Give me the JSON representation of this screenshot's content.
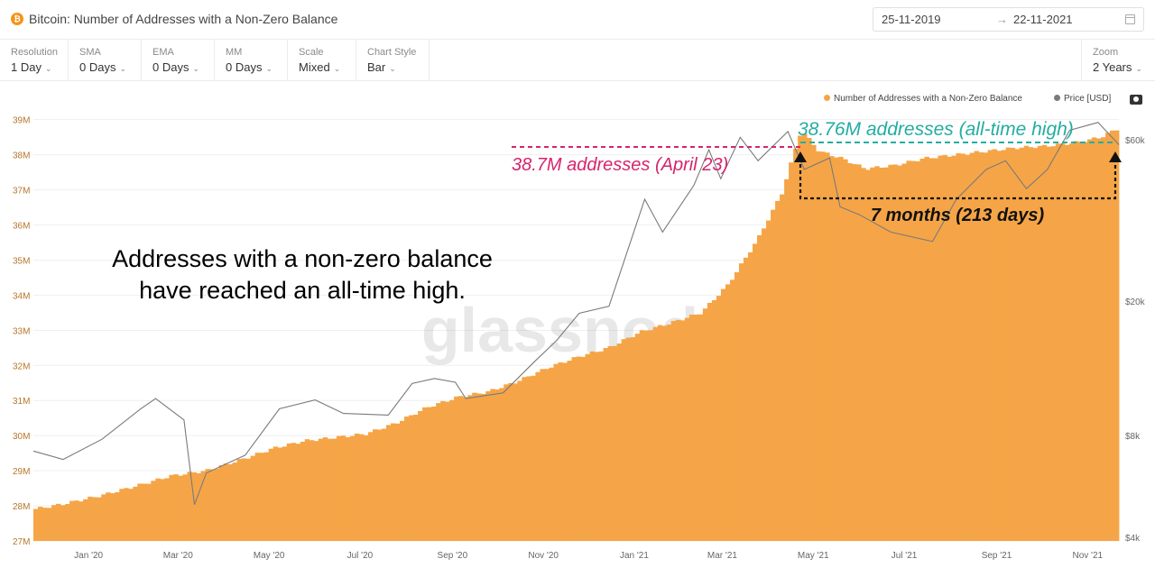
{
  "header": {
    "coin_symbol": "₿",
    "title": "Bitcoin: Number of Addresses with a Non-Zero Balance",
    "date_from": "25-11-2019",
    "date_arrow": "→",
    "date_to": "22-11-2021"
  },
  "toolbar": {
    "chevron": "⌄",
    "resolution": {
      "label": "Resolution",
      "value": "1 Day"
    },
    "sma": {
      "label": "SMA",
      "value": "0 Days"
    },
    "ema": {
      "label": "EMA",
      "value": "0 Days"
    },
    "mm": {
      "label": "MM",
      "value": "0 Days"
    },
    "scale": {
      "label": "Scale",
      "value": "Mixed"
    },
    "chart_style": {
      "label": "Chart Style",
      "value": "Bar"
    },
    "zoom": {
      "label": "Zoom",
      "value": "2 Years"
    }
  },
  "legend": {
    "addresses": "Number of Addresses with a Non-Zero Balance",
    "price": "Price [USD]"
  },
  "colors": {
    "bar": "#f5a547",
    "price_line": "#7a7a7a",
    "annotation_pink": "#d6246e",
    "annotation_teal": "#23ada1",
    "annotation_black": "#111111"
  },
  "chart_data": {
    "type": "bar",
    "x_tick_labels": [
      "Jan '20",
      "Mar '20",
      "May '20",
      "Jul '20",
      "Sep '20",
      "Nov '20",
      "Jan '21",
      "Mar '21",
      "May '21",
      "Jul '21",
      "Sep '21",
      "Nov '21"
    ],
    "y_left_ticks": [
      "27M",
      "28M",
      "29M",
      "30M",
      "31M",
      "32M",
      "33M",
      "34M",
      "35M",
      "36M",
      "37M",
      "38M",
      "39M"
    ],
    "y_left_range": [
      27,
      39.3
    ],
    "y_right_ticks": [
      "$4k",
      "$8k",
      "$20k",
      "$60k"
    ],
    "y_right_scale": "log",
    "watermark": "glassnode",
    "series": [
      {
        "name": "Number of Addresses with a Non-Zero Balance",
        "unit": "M",
        "dates": [
          "2019-11-25",
          "2019-12-15",
          "2020-01-10",
          "2020-02-05",
          "2020-02-25",
          "2020-03-20",
          "2020-04-15",
          "2020-05-05",
          "2020-05-25",
          "2020-06-15",
          "2020-07-05",
          "2020-07-25",
          "2020-08-15",
          "2020-09-05",
          "2020-09-25",
          "2020-10-15",
          "2020-11-05",
          "2020-11-25",
          "2020-12-15",
          "2021-01-05",
          "2021-01-25",
          "2021-02-15",
          "2021-03-05",
          "2021-03-25",
          "2021-04-10",
          "2021-04-23",
          "2021-05-05",
          "2021-05-20",
          "2021-06-05",
          "2021-06-25",
          "2021-07-15",
          "2021-08-05",
          "2021-08-25",
          "2021-09-15",
          "2021-10-05",
          "2021-10-25",
          "2021-11-10",
          "2021-11-22"
        ],
        "values": [
          27.9,
          28.05,
          28.3,
          28.6,
          28.85,
          29.0,
          29.35,
          29.65,
          29.85,
          29.95,
          30.05,
          30.35,
          30.8,
          31.1,
          31.25,
          31.55,
          31.95,
          32.25,
          32.5,
          32.95,
          33.2,
          33.5,
          34.3,
          35.6,
          36.9,
          38.7,
          38.1,
          37.9,
          37.6,
          37.7,
          37.9,
          38.0,
          38.1,
          38.2,
          38.25,
          38.35,
          38.5,
          38.76
        ]
      },
      {
        "name": "Price [USD]",
        "unit": "USD",
        "dates": [
          "2019-11-25",
          "2019-12-15",
          "2020-01-10",
          "2020-02-05",
          "2020-02-15",
          "2020-03-05",
          "2020-03-12",
          "2020-03-20",
          "2020-04-15",
          "2020-05-08",
          "2020-06-01",
          "2020-06-20",
          "2020-07-20",
          "2020-08-05",
          "2020-08-20",
          "2020-09-03",
          "2020-09-10",
          "2020-10-05",
          "2020-10-25",
          "2020-11-10",
          "2020-11-25",
          "2020-12-15",
          "2021-01-08",
          "2021-01-20",
          "2021-02-10",
          "2021-02-20",
          "2021-02-28",
          "2021-03-13",
          "2021-03-25",
          "2021-04-14",
          "2021-04-25",
          "2021-05-12",
          "2021-05-19",
          "2021-06-01",
          "2021-06-22",
          "2021-07-20",
          "2021-08-05",
          "2021-08-25",
          "2021-09-07",
          "2021-09-21",
          "2021-10-05",
          "2021-10-20",
          "2021-11-08",
          "2021-11-22"
        ],
        "values": [
          7200,
          6800,
          7800,
          9600,
          10300,
          8900,
          5000,
          6200,
          7000,
          9600,
          10200,
          9300,
          9200,
          11400,
          11800,
          11500,
          10300,
          10700,
          13100,
          15300,
          18400,
          19300,
          40000,
          32000,
          44000,
          56000,
          46000,
          61000,
          52000,
          63500,
          49000,
          53000,
          38000,
          36000,
          32000,
          30000,
          40000,
          49000,
          52000,
          43000,
          49000,
          64000,
          67500,
          58000
        ]
      }
    ],
    "annotations": [
      "38.76M addresses (all-time high)",
      "38.7M addresses (April 23)",
      "7 months (213 days)",
      "Addresses with a non-zero balance have reached an all-time high."
    ],
    "headline_lines": [
      "Addresses with a non-zero balance",
      "have reached an all-time high."
    ]
  }
}
